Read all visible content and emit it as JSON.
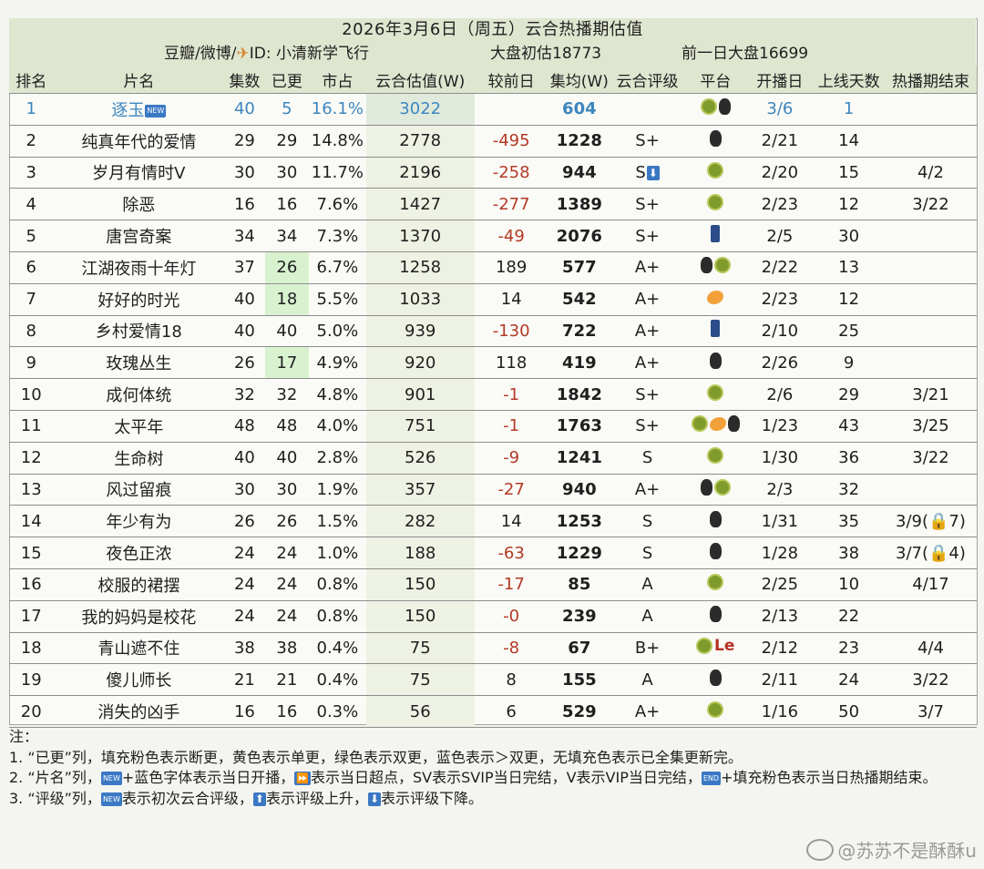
{
  "title": "2026年3月6日（周五）云合热播期估值",
  "subtitle": {
    "source": "豆瓣/微博/",
    "author_label": "ID: 小清新学飞行",
    "market_estimate": "大盘初估18773",
    "prev_market": "前一日大盘16699"
  },
  "columns": [
    "排名",
    "片名",
    "集数",
    "已更",
    "市占",
    "云合估值(W)",
    "较前日",
    "集均(W)",
    "云合评级",
    "平台",
    "开播日",
    "上线天数",
    "热播期结束"
  ],
  "rows": [
    {
      "rank": "1",
      "name": "逐玉",
      "total": "40",
      "updated": "5",
      "share": "16.1%",
      "est": "3022",
      "diff": "",
      "avg": "604",
      "rating": "",
      "platform": [
        "kiwi",
        "penguin"
      ],
      "start": "3/6",
      "days": "1",
      "end": "",
      "name_badge": "NEW",
      "first": true
    },
    {
      "rank": "2",
      "name": "纯真年代的爱情",
      "total": "29",
      "updated": "29",
      "share": "14.8%",
      "est": "2778",
      "diff": "-495",
      "avg": "1228",
      "rating": "S+",
      "platform": [
        "penguin"
      ],
      "start": "2/21",
      "days": "14",
      "end": ""
    },
    {
      "rank": "3",
      "name": "岁月有情时V",
      "total": "30",
      "updated": "30",
      "share": "11.7%",
      "est": "2196",
      "diff": "-258",
      "avg": "944",
      "rating": "S",
      "rating_down": true,
      "platform": [
        "kiwi"
      ],
      "start": "2/20",
      "days": "15",
      "end": "4/2"
    },
    {
      "rank": "4",
      "name": "除恶",
      "total": "16",
      "updated": "16",
      "share": "7.6%",
      "est": "1427",
      "diff": "-277",
      "avg": "1389",
      "rating": "S+",
      "platform": [
        "kiwi"
      ],
      "start": "2/23",
      "days": "12",
      "end": "3/22"
    },
    {
      "rank": "5",
      "name": "唐宫奇案",
      "total": "34",
      "updated": "34",
      "share": "7.3%",
      "est": "1370",
      "diff": "-49",
      "avg": "2076",
      "rating": "S+",
      "platform": [
        "jeans"
      ],
      "start": "2/5",
      "days": "30",
      "end": ""
    },
    {
      "rank": "6",
      "name": "江湖夜雨十年灯",
      "total": "37",
      "updated": "26",
      "share": "6.7%",
      "est": "1258",
      "diff": "189",
      "avg": "577",
      "rating": "A+",
      "platform": [
        "penguin",
        "kiwi"
      ],
      "start": "2/22",
      "days": "13",
      "end": "",
      "ep_green": true
    },
    {
      "rank": "7",
      "name": "好好的时光",
      "total": "40",
      "updated": "18",
      "share": "5.5%",
      "est": "1033",
      "diff": "14",
      "avg": "542",
      "rating": "A+",
      "platform": [
        "mango"
      ],
      "start": "2/23",
      "days": "12",
      "end": "",
      "ep_green": true
    },
    {
      "rank": "8",
      "name": "乡村爱情18",
      "total": "40",
      "updated": "40",
      "share": "5.0%",
      "est": "939",
      "diff": "-130",
      "avg": "722",
      "rating": "A+",
      "platform": [
        "jeans"
      ],
      "start": "2/10",
      "days": "25",
      "end": ""
    },
    {
      "rank": "9",
      "name": "玫瑰丛生",
      "total": "26",
      "updated": "17",
      "share": "4.9%",
      "est": "920",
      "diff": "118",
      "avg": "419",
      "rating": "A+",
      "platform": [
        "penguin"
      ],
      "start": "2/26",
      "days": "9",
      "end": "",
      "ep_green": true
    },
    {
      "rank": "10",
      "name": "成何体统",
      "total": "32",
      "updated": "32",
      "share": "4.8%",
      "est": "901",
      "diff": "-1",
      "avg": "1842",
      "rating": "S+",
      "platform": [
        "kiwi"
      ],
      "start": "2/6",
      "days": "29",
      "end": "3/21"
    },
    {
      "rank": "11",
      "name": "太平年",
      "total": "48",
      "updated": "48",
      "share": "4.0%",
      "est": "751",
      "diff": "-1",
      "avg": "1763",
      "rating": "S+",
      "platform": [
        "kiwi",
        "mango",
        "penguin"
      ],
      "start": "1/23",
      "days": "43",
      "end": "3/25"
    },
    {
      "rank": "12",
      "name": "生命树",
      "total": "40",
      "updated": "40",
      "share": "2.8%",
      "est": "526",
      "diff": "-9",
      "avg": "1241",
      "rating": "S",
      "platform": [
        "kiwi"
      ],
      "start": "1/30",
      "days": "36",
      "end": "3/22"
    },
    {
      "rank": "13",
      "name": "风过留痕",
      "total": "30",
      "updated": "30",
      "share": "1.9%",
      "est": "357",
      "diff": "-27",
      "avg": "940",
      "rating": "A+",
      "platform": [
        "penguin",
        "kiwi"
      ],
      "start": "2/3",
      "days": "32",
      "end": ""
    },
    {
      "rank": "14",
      "name": "年少有为",
      "total": "26",
      "updated": "26",
      "share": "1.5%",
      "est": "282",
      "diff": "14",
      "avg": "1253",
      "rating": "S",
      "platform": [
        "penguin"
      ],
      "start": "1/31",
      "days": "35",
      "end": "3/9(🔒7)"
    },
    {
      "rank": "15",
      "name": "夜色正浓",
      "total": "24",
      "updated": "24",
      "share": "1.0%",
      "est": "188",
      "diff": "-63",
      "avg": "1229",
      "rating": "S",
      "platform": [
        "penguin"
      ],
      "start": "1/28",
      "days": "38",
      "end": "3/7(🔒4)"
    },
    {
      "rank": "16",
      "name": "校服的裙摆",
      "total": "24",
      "updated": "24",
      "share": "0.8%",
      "est": "150",
      "diff": "-17",
      "avg": "85",
      "rating": "A",
      "platform": [
        "kiwi"
      ],
      "start": "2/25",
      "days": "10",
      "end": "4/17"
    },
    {
      "rank": "17",
      "name": "我的妈妈是校花",
      "total": "24",
      "updated": "24",
      "share": "0.8%",
      "est": "150",
      "diff": "-0",
      "avg": "239",
      "rating": "A",
      "platform": [
        "penguin"
      ],
      "start": "2/13",
      "days": "22",
      "end": ""
    },
    {
      "rank": "18",
      "name": "青山遮不住",
      "total": "38",
      "updated": "38",
      "share": "0.4%",
      "est": "75",
      "diff": "-8",
      "avg": "67",
      "rating": "B+",
      "platform": [
        "kiwi",
        "le"
      ],
      "start": "2/12",
      "days": "23",
      "end": "4/4"
    },
    {
      "rank": "19",
      "name": "傻儿师长",
      "total": "21",
      "updated": "21",
      "share": "0.4%",
      "est": "75",
      "diff": "8",
      "avg": "155",
      "rating": "A",
      "platform": [
        "penguin"
      ],
      "start": "2/11",
      "days": "24",
      "end": "3/22"
    },
    {
      "rank": "20",
      "name": "消失的凶手",
      "total": "16",
      "updated": "16",
      "share": "0.3%",
      "est": "56",
      "diff": "6",
      "avg": "529",
      "rating": "A+",
      "platform": [
        "kiwi"
      ],
      "start": "1/16",
      "days": "50",
      "end": "3/7"
    }
  ],
  "notes": {
    "heading": "注：",
    "line1": "1. “已更”列，填充粉色表示断更，黄色表示单更，绿色表示双更，蓝色表示＞双更，无填充色表示已全集更新完。",
    "line2a": "2. “片名”列，",
    "line2b": "+蓝色字体表示当日开播，",
    "line2c": "表示当日超点，SV表示SVIP当日完结，V表示VIP当日完结，",
    "line2d": "+填充粉色表示当日热播期结束。",
    "line3a": "3. “评级”列，",
    "line3b": "表示初次云合评级，",
    "line3c": "表示评级上升，",
    "line3d": "表示评级下降。",
    "badge_new": "NEW",
    "badge_end": "END"
  },
  "watermark": "@苏苏不是酥酥u"
}
